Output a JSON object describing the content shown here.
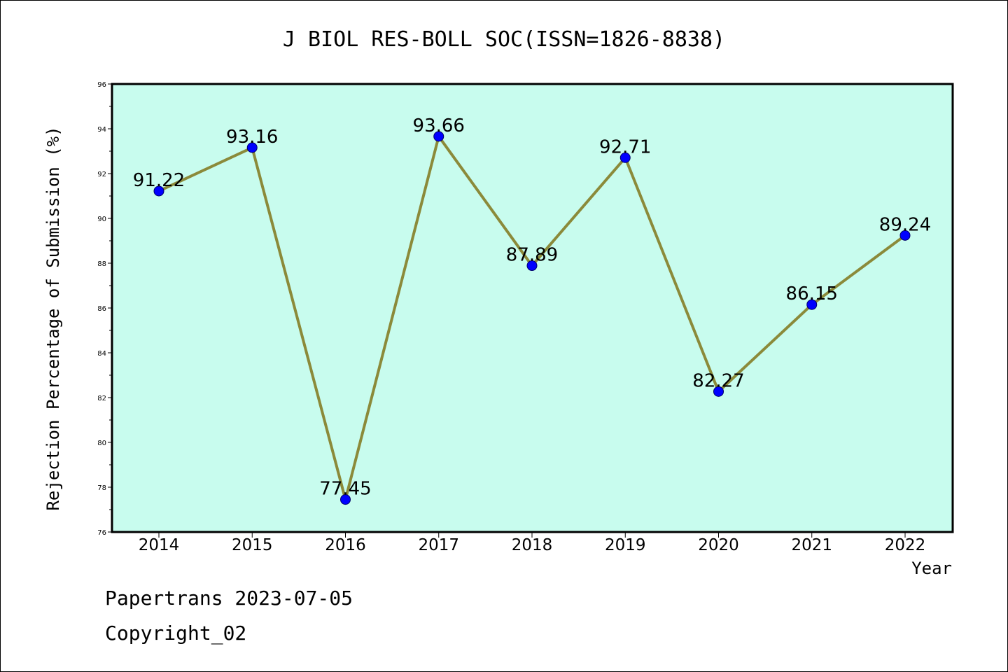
{
  "footer": {
    "line1": "Papertrans 2023-07-05",
    "line2": "Copyright_02"
  },
  "chart_data": {
    "type": "line",
    "title": "J BIOL RES-BOLL SOC(ISSN=1826-8838)",
    "xlabel": "Year",
    "ylabel": "Rejection Percentage of Submission (%)",
    "categories": [
      "2014",
      "2015",
      "2016",
      "2017",
      "2018",
      "2019",
      "2020",
      "2021",
      "2022"
    ],
    "series": [
      {
        "values": [
          91.22,
          93.16,
          77.45,
          93.66,
          87.89,
          92.71,
          82.27,
          86.15,
          89.24
        ],
        "labels": [
          "91.22",
          "93.16",
          "77.45",
          "93.66",
          "87.89",
          "92.71",
          "82.27",
          "86.15",
          "89.24"
        ],
        "line_color": "#8b8a3a",
        "marker_color": "#0000ff"
      }
    ],
    "ylim": [
      76,
      96
    ],
    "yticks": [
      "76",
      "78",
      "80",
      "82",
      "84",
      "86",
      "88",
      "90",
      "92",
      "94",
      "96"
    ],
    "plot_background": "#c8fcee",
    "grid": false,
    "legend": "none"
  }
}
